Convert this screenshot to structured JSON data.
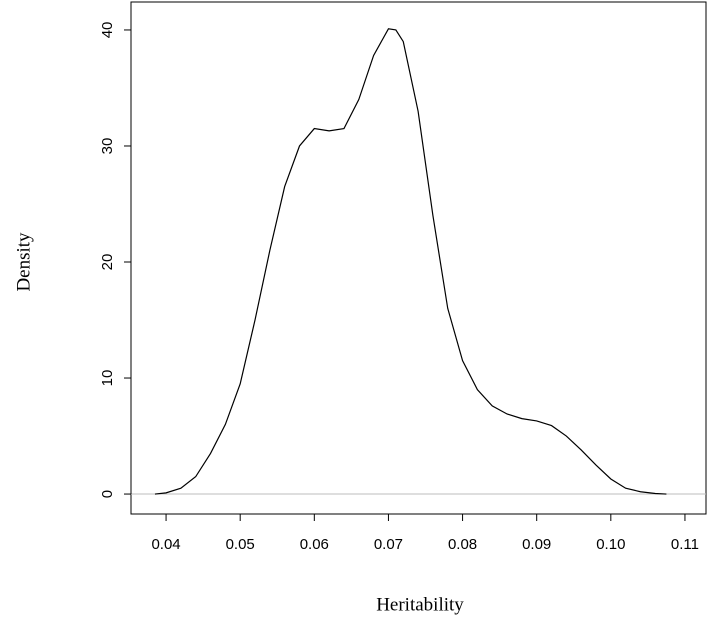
{
  "chart_data": {
    "type": "line",
    "xlabel": "Heritability",
    "ylabel": "Density",
    "x": [
      0.0385,
      0.04,
      0.042,
      0.044,
      0.046,
      0.048,
      0.05,
      0.052,
      0.054,
      0.056,
      0.058,
      0.06,
      0.062,
      0.064,
      0.066,
      0.068,
      0.07,
      0.071,
      0.072,
      0.074,
      0.076,
      0.078,
      0.08,
      0.082,
      0.084,
      0.086,
      0.088,
      0.09,
      0.092,
      0.094,
      0.096,
      0.098,
      0.1,
      0.102,
      0.104,
      0.106,
      0.1075
    ],
    "series": [
      {
        "color": "#000000",
        "values": [
          0,
          0.1,
          0.5,
          1.5,
          3.5,
          6,
          9.5,
          15,
          21,
          26.5,
          30,
          31.5,
          31.3,
          31.5,
          34,
          37.8,
          40.1,
          40,
          39,
          33,
          24,
          16,
          11.5,
          9,
          7.6,
          6.9,
          6.5,
          6.3,
          5.9,
          5,
          3.8,
          2.5,
          1.3,
          0.5,
          0.2,
          0.05,
          0
        ]
      }
    ],
    "xlim": [
      0.03527,
      0.11284
    ],
    "ylim": [
      -1.72,
      42.41
    ],
    "xticks": [
      0.04,
      0.05,
      0.06,
      0.07,
      0.08,
      0.09,
      {
        "value": 0.1,
        "label": "0.10"
      },
      0.11
    ],
    "yticks": [
      0,
      10,
      20,
      30,
      40
    ],
    "zero_line_color": "#bebebe"
  }
}
